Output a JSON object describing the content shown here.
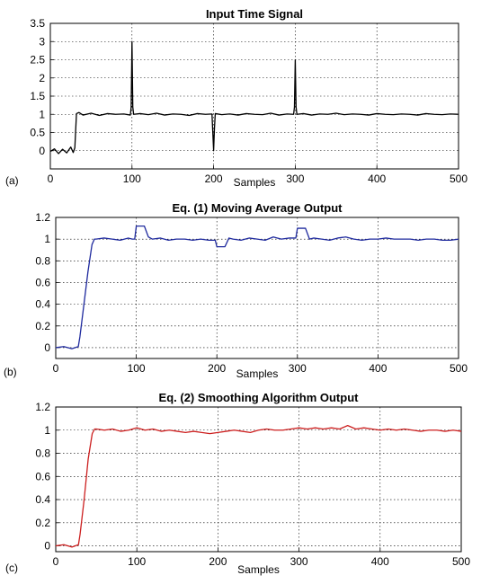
{
  "chart_data": [
    {
      "type": "line",
      "panel_label": "(a)",
      "title": "Input Time Signal",
      "xlabel": "Samples",
      "ylabel": "",
      "xlim": [
        0,
        500
      ],
      "ylim": [
        -0.5,
        3.5
      ],
      "xticks": [
        0,
        100,
        200,
        300,
        400,
        500
      ],
      "yticks": [
        0,
        0.5,
        1,
        1.5,
        2,
        2.5,
        3,
        3.5
      ],
      "xtick_labels": [
        "0",
        "100",
        "200",
        "300",
        "400",
        "500"
      ],
      "ytick_labels": [
        "0",
        "0.5",
        "1",
        "1.5",
        "2",
        "2.5",
        "3",
        "3.5"
      ],
      "grid": true,
      "color": "#000000",
      "series": [
        {
          "x": [
            0,
            5,
            10,
            15,
            20,
            25,
            28,
            30,
            32,
            35,
            40,
            50,
            60,
            70,
            80,
            90,
            98,
            99,
            100,
            101,
            102,
            110,
            120,
            130,
            140,
            150,
            160,
            170,
            180,
            190,
            198,
            199,
            200,
            201,
            202,
            210,
            220,
            230,
            240,
            250,
            260,
            270,
            280,
            290,
            298,
            299,
            300,
            301,
            302,
            310,
            320,
            330,
            340,
            350,
            360,
            370,
            380,
            390,
            400,
            410,
            420,
            430,
            440,
            450,
            460,
            470,
            480,
            490,
            500
          ],
          "y": [
            -0.02,
            0.05,
            -0.08,
            0.04,
            -0.06,
            0.1,
            -0.05,
            0.08,
            1.02,
            1.05,
            0.98,
            1.03,
            0.97,
            1.02,
            1.0,
            1.01,
            0.98,
            1.2,
            3.0,
            1.2,
            1.0,
            1.02,
            0.99,
            1.03,
            0.98,
            1.01,
            1.0,
            0.97,
            1.02,
            1.0,
            1.01,
            0.5,
            0.0,
            0.6,
            1.02,
            0.99,
            1.01,
            0.98,
            1.02,
            1.0,
            0.99,
            1.03,
            0.98,
            1.01,
            1.0,
            1.2,
            2.5,
            1.2,
            1.0,
            1.02,
            0.98,
            1.01,
            1.0,
            1.03,
            0.99,
            1.01,
            1.0,
            0.98,
            1.02,
            1.0,
            0.99,
            1.01,
            1.0,
            0.98,
            1.02,
            1.0,
            0.99,
            1.01,
            1.0
          ]
        }
      ]
    },
    {
      "type": "line",
      "panel_label": "(b)",
      "title": "Eq. (1) Moving Average Output",
      "xlabel": "Samples",
      "ylabel": "",
      "xlim": [
        0,
        500
      ],
      "ylim": [
        -0.1,
        1.2
      ],
      "xticks": [
        0,
        100,
        200,
        300,
        400,
        500
      ],
      "yticks": [
        0,
        0.2,
        0.4,
        0.6,
        0.8,
        1,
        1.2
      ],
      "xtick_labels": [
        "0",
        "100",
        "200",
        "300",
        "400",
        "500"
      ],
      "ytick_labels": [
        "0",
        "0.2",
        "0.4",
        "0.6",
        "0.8",
        "1",
        "1.2"
      ],
      "grid": true,
      "color": "#1f2a9e",
      "series": [
        {
          "x": [
            0,
            10,
            20,
            28,
            30,
            35,
            40,
            45,
            48,
            50,
            60,
            70,
            80,
            90,
            95,
            98,
            100,
            110,
            115,
            120,
            130,
            140,
            150,
            160,
            170,
            180,
            190,
            198,
            200,
            210,
            215,
            220,
            230,
            240,
            250,
            260,
            270,
            280,
            290,
            298,
            300,
            310,
            315,
            320,
            330,
            340,
            350,
            360,
            370,
            380,
            390,
            400,
            410,
            420,
            430,
            440,
            450,
            460,
            470,
            480,
            490,
            500
          ],
          "y": [
            0.0,
            0.01,
            -0.01,
            0.01,
            0.1,
            0.4,
            0.7,
            0.95,
            1.0,
            1.0,
            1.01,
            1.0,
            0.99,
            1.01,
            1.0,
            1.0,
            1.12,
            1.12,
            1.02,
            1.0,
            1.01,
            0.99,
            1.0,
            1.0,
            0.99,
            1.0,
            0.99,
            0.99,
            0.93,
            0.93,
            1.01,
            1.0,
            0.99,
            1.01,
            1.0,
            0.99,
            1.02,
            1.0,
            1.01,
            1.01,
            1.1,
            1.1,
            1.0,
            1.01,
            1.0,
            0.99,
            1.01,
            1.02,
            1.0,
            0.99,
            1.0,
            1.0,
            1.01,
            1.0,
            1.0,
            1.0,
            0.99,
            1.0,
            1.0,
            0.99,
            0.99,
            1.0
          ]
        }
      ]
    },
    {
      "type": "line",
      "panel_label": "(c)",
      "title": "Eq. (2) Smoothing Algorithm Output",
      "xlabel": "Samples",
      "ylabel": "",
      "xlim": [
        0,
        500
      ],
      "ylim": [
        -0.05,
        1.2
      ],
      "xticks": [
        0,
        100,
        200,
        300,
        400,
        500
      ],
      "yticks": [
        0,
        0.2,
        0.4,
        0.6,
        0.8,
        1,
        1.2
      ],
      "xtick_labels": [
        "0",
        "100",
        "200",
        "300",
        "400",
        "500"
      ],
      "ytick_labels": [
        "0",
        "0.2",
        "0.4",
        "0.6",
        "0.8",
        "1",
        "1.2"
      ],
      "grid": true,
      "color": "#cc1f1f",
      "series": [
        {
          "x": [
            0,
            10,
            20,
            28,
            30,
            35,
            40,
            45,
            48,
            50,
            60,
            70,
            80,
            90,
            100,
            110,
            120,
            130,
            140,
            150,
            160,
            170,
            180,
            190,
            200,
            210,
            220,
            230,
            240,
            250,
            260,
            270,
            280,
            290,
            300,
            310,
            320,
            330,
            340,
            350,
            360,
            370,
            380,
            390,
            400,
            410,
            420,
            430,
            440,
            450,
            460,
            470,
            480,
            490,
            500
          ],
          "y": [
            0.0,
            0.01,
            -0.01,
            0.01,
            0.1,
            0.4,
            0.75,
            0.97,
            1.01,
            1.01,
            1.0,
            1.01,
            0.99,
            1.0,
            1.02,
            1.0,
            1.01,
            0.99,
            1.0,
            0.99,
            0.98,
            0.99,
            0.98,
            0.97,
            0.98,
            0.99,
            1.0,
            0.99,
            0.98,
            1.0,
            1.01,
            1.0,
            1.0,
            1.01,
            1.02,
            1.01,
            1.02,
            1.01,
            1.02,
            1.01,
            1.04,
            1.01,
            1.02,
            1.01,
            1.0,
            1.01,
            1.0,
            1.01,
            1.0,
            0.99,
            1.0,
            1.0,
            0.99,
            1.0,
            0.99
          ]
        }
      ]
    }
  ]
}
